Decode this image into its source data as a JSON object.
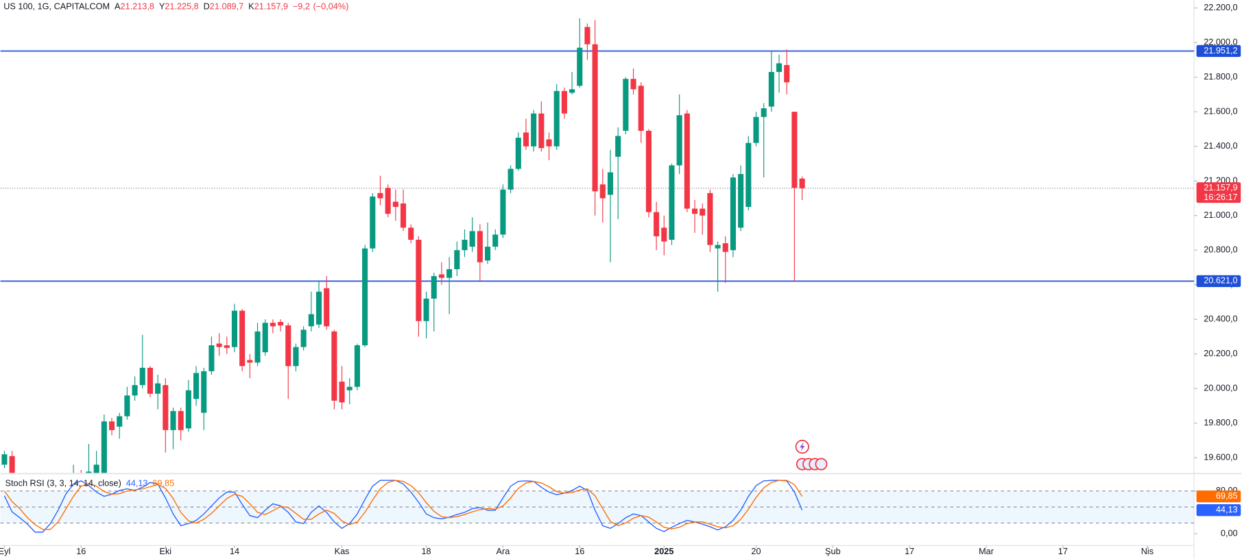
{
  "chart_data": [
    {
      "type": "candlestick",
      "title": "US 100, 1G, CAPITALCOM",
      "legend_keys": [
        "A",
        "Y",
        "D",
        "K"
      ],
      "legend_labels": [
        "21.213,8",
        "21.225,8",
        "21.089,7",
        "21.157,9"
      ],
      "change": {
        "value": -9.2,
        "label": "−9,2"
      },
      "change_pct": {
        "value": -0.04,
        "label": "(−0,04%)"
      },
      "up_color": "#089981",
      "down_color": "#f23645",
      "x": [
        0,
        1,
        9,
        10,
        11,
        12,
        13,
        14,
        15,
        16,
        17,
        18,
        19,
        20,
        21,
        22,
        23,
        24,
        25,
        26,
        27,
        28,
        29,
        30,
        31,
        32,
        33,
        34,
        35,
        36,
        37,
        38,
        39,
        40,
        41,
        42,
        43,
        44,
        45,
        46,
        47,
        48,
        49,
        50,
        51,
        52,
        53,
        54,
        55,
        56,
        57,
        58,
        59,
        60,
        61,
        62,
        63,
        64,
        65,
        66,
        67,
        68,
        69,
        70,
        71,
        72,
        73,
        74,
        75,
        76,
        77,
        78,
        79,
        80,
        81,
        82,
        83,
        84,
        85,
        86,
        87,
        88,
        89,
        90,
        91,
        92,
        93,
        94,
        95,
        96,
        97,
        98,
        99,
        100,
        101,
        102,
        103,
        104
      ],
      "open": [
        19560,
        19610,
        19450,
        19500,
        19460,
        19500,
        19500,
        19810,
        19780,
        19840,
        19960,
        20020,
        20120,
        19970,
        20020,
        19760,
        19870,
        19770,
        19940,
        19860,
        20100,
        20260,
        20250,
        20240,
        20450,
        20165,
        20150,
        20210,
        20380,
        20385,
        20365,
        20130,
        20240,
        20360,
        20370,
        20580,
        20330,
        20040,
        19990,
        20010,
        20250,
        20810,
        21130,
        21160,
        21080,
        21070,
        20930,
        20860,
        20390,
        20520,
        20660,
        20640,
        20690,
        20800,
        20820,
        20910,
        20740,
        20820,
        20890,
        21150,
        21270,
        21480,
        21400,
        21590,
        21440,
        21400,
        21720,
        21710,
        21750,
        22090,
        21990,
        21180,
        21120,
        21340,
        21490,
        21790,
        21750,
        21490,
        21020,
        20930,
        20860,
        21290,
        21590,
        21040,
        21040,
        21130,
        20810,
        20840,
        20800,
        20930,
        21050,
        21420,
        21570,
        21630,
        21830,
        21870,
        21600,
        21213.8
      ],
      "high": [
        19640,
        19640,
        19560,
        19530,
        19680,
        19640,
        19850,
        19830,
        19860,
        20010,
        20070,
        20310,
        20130,
        20080,
        20060,
        19890,
        19890,
        20050,
        20130,
        20120,
        20300,
        20320,
        20300,
        20490,
        20460,
        20200,
        20380,
        20400,
        20400,
        20400,
        20380,
        20260,
        20360,
        20560,
        20620,
        20650,
        20340,
        20130,
        20060,
        20260,
        20830,
        21130,
        21230,
        21180,
        21150,
        21150,
        20950,
        20880,
        20560,
        20670,
        20730,
        20760,
        20850,
        20920,
        20990,
        20950,
        20960,
        20920,
        21180,
        21290,
        21480,
        21560,
        21610,
        21660,
        21480,
        21760,
        21740,
        21830,
        22140,
        22110,
        22130,
        21270,
        21380,
        21510,
        21800,
        21850,
        21770,
        21500,
        21080,
        21000,
        21300,
        21700,
        21610,
        21090,
        21070,
        21150,
        20850,
        20880,
        21240,
        21290,
        21460,
        21600,
        21650,
        21950,
        21930,
        21960,
        21600,
        21225.8
      ],
      "low": [
        19540,
        19460,
        19420,
        19420,
        19440,
        19460,
        19480,
        19730,
        19710,
        19820,
        19930,
        20000,
        19950,
        19880,
        19630,
        19650,
        19700,
        19750,
        19900,
        19760,
        20080,
        20190,
        20200,
        20210,
        20100,
        20060,
        20130,
        20190,
        20320,
        20330,
        19940,
        20100,
        20220,
        20330,
        20350,
        20340,
        19880,
        19880,
        19910,
        19990,
        20240,
        20790,
        21060,
        20990,
        20970,
        20910,
        20840,
        20300,
        20290,
        20330,
        20600,
        20430,
        20650,
        20760,
        20790,
        20620,
        20720,
        20800,
        20870,
        21130,
        21260,
        21380,
        21370,
        21370,
        21320,
        21380,
        21560,
        21700,
        21740,
        21900,
        21000,
        20960,
        20730,
        20980,
        21470,
        21700,
        21420,
        20990,
        20800,
        20770,
        20830,
        21240,
        21020,
        20900,
        20890,
        20790,
        20560,
        20610,
        20760,
        20910,
        21030,
        21400,
        21220,
        21600,
        21710,
        21700,
        20620,
        21089.7
      ],
      "close": [
        19620,
        19480,
        19500,
        19460,
        19520,
        19560,
        19810,
        19760,
        19840,
        19960,
        20020,
        20120,
        19970,
        20030,
        19760,
        19870,
        19760,
        19990,
        20090,
        20100,
        20250,
        20240,
        20235,
        20450,
        20130,
        20150,
        20330,
        20380,
        20360,
        20365,
        20130,
        20240,
        20340,
        20430,
        20560,
        20360,
        19930,
        19920,
        20010,
        20250,
        20810,
        21110,
        21100,
        21010,
        21050,
        20930,
        20860,
        20390,
        20520,
        20650,
        20640,
        20690,
        20800,
        20860,
        20910,
        20730,
        20820,
        20890,
        21150,
        21270,
        21450,
        21400,
        21590,
        21390,
        21400,
        21720,
        21590,
        21730,
        21970,
        21990,
        21140,
        21100,
        21250,
        21460,
        21790,
        21730,
        21490,
        21020,
        20880,
        20850,
        21290,
        21580,
        21040,
        21010,
        21000,
        20830,
        20830,
        20790,
        21220,
        21240,
        21420,
        21570,
        21620,
        21830,
        21880,
        21770,
        21160,
        21157.9
      ],
      "xlim": [
        -0.52,
        155.1
      ],
      "ylim": [
        19513,
        22246
      ],
      "yticks": [
        {
          "value": 19600,
          "label": "19.600,0"
        },
        {
          "value": 19800,
          "label": "19.800,0"
        },
        {
          "value": 20000,
          "label": "20.000,0"
        },
        {
          "value": 20200,
          "label": "20.200,0"
        },
        {
          "value": 20400,
          "label": "20.400,0"
        },
        {
          "value": 20600,
          "label": "20.600,0"
        },
        {
          "value": 20800,
          "label": "20.800,0"
        },
        {
          "value": 21000,
          "label": "21.000,0"
        },
        {
          "value": 21200,
          "label": "21.200,0"
        },
        {
          "value": 21400,
          "label": "21.400,0"
        },
        {
          "value": 21600,
          "label": "21.600,0"
        },
        {
          "value": 21800,
          "label": "21.800,0"
        },
        {
          "value": 22000,
          "label": "22.000,0"
        },
        {
          "value": 22200,
          "label": "22.200,0"
        }
      ],
      "xticks": [
        {
          "value": 0,
          "label": "Eyl"
        },
        {
          "value": 10,
          "label": "16"
        },
        {
          "value": 21,
          "label": "Eki"
        },
        {
          "value": 30,
          "label": "14"
        },
        {
          "value": 44,
          "label": "Kas"
        },
        {
          "value": 55,
          "label": "18"
        },
        {
          "value": 65,
          "label": "Ara"
        },
        {
          "value": 75,
          "label": "16"
        },
        {
          "value": 86,
          "label": "2025"
        },
        {
          "value": 98,
          "label": "20"
        },
        {
          "value": 108,
          "label": "Şub"
        },
        {
          "value": 118,
          "label": "17"
        },
        {
          "value": 128,
          "label": "Mar"
        },
        {
          "value": 138,
          "label": "17"
        },
        {
          "value": 149,
          "label": "Nis"
        }
      ],
      "hline_color": "#1e4fd8",
      "hlines": [
        {
          "value": 21951.2,
          "label": "21.951,2"
        },
        {
          "value": 20621.0,
          "label": "20.621,0"
        }
      ],
      "last_price": {
        "value": 21157.9,
        "label": "21.157,9"
      },
      "countdown": "16:26:17"
    },
    {
      "type": "line",
      "title": "Stoch RSI (3, 3, 14, 14, close)",
      "x": [
        0,
        1,
        2,
        3,
        4,
        5,
        6,
        7,
        8,
        9,
        10,
        11,
        12,
        13,
        14,
        15,
        16,
        17,
        18,
        19,
        20,
        21,
        22,
        23,
        24,
        25,
        26,
        27,
        28,
        29,
        30,
        31,
        32,
        33,
        34,
        35,
        36,
        37,
        38,
        39,
        40,
        41,
        42,
        43,
        44,
        45,
        46,
        47,
        48,
        49,
        50,
        51,
        52,
        53,
        54,
        55,
        56,
        57,
        58,
        59,
        60,
        61,
        62,
        63,
        64,
        65,
        66,
        67,
        68,
        69,
        70,
        71,
        72,
        73,
        74,
        75,
        76,
        77,
        78,
        79,
        80,
        81,
        82,
        83,
        84,
        85,
        86,
        87,
        88,
        89,
        90,
        91,
        92,
        93,
        94,
        95,
        96,
        97,
        98,
        99,
        100,
        101,
        102,
        103,
        104
      ],
      "series": [
        {
          "color": "#2962ff",
          "last_label": "44,13",
          "values": [
            71,
            41,
            30,
            18,
            3,
            3,
            19,
            44,
            74,
            93,
            99,
            90,
            78,
            70,
            74,
            81,
            84,
            81,
            87,
            96,
            93,
            67,
            37,
            15,
            19,
            25,
            37,
            52,
            67,
            78,
            78,
            55,
            34,
            30,
            44,
            56,
            52,
            40,
            22,
            19,
            40,
            52,
            40,
            22,
            10,
            19,
            37,
            64,
            89,
            100,
            100,
            100,
            93,
            78,
            59,
            37,
            30,
            28,
            31,
            36,
            40,
            47,
            49,
            44,
            44,
            67,
            89,
            98,
            99,
            98,
            87,
            78,
            73,
            76,
            81,
            89,
            81,
            44,
            15,
            10,
            19,
            30,
            37,
            34,
            22,
            10,
            4,
            12,
            19,
            25,
            22,
            18,
            13,
            7,
            13,
            25,
            44,
            70,
            90,
            99,
            100,
            100,
            99,
            78,
            44.13
          ]
        },
        {
          "color": "#ff6d00",
          "last_label": "69,85",
          "values": [
            80,
            60,
            47,
            30,
            17,
            8,
            8,
            22,
            46,
            70,
            89,
            94,
            89,
            79,
            74,
            75,
            80,
            82,
            84,
            88,
            92,
            85,
            66,
            40,
            24,
            20,
            27,
            38,
            52,
            66,
            74,
            70,
            56,
            40,
            36,
            43,
            51,
            49,
            38,
            27,
            27,
            37,
            44,
            38,
            24,
            17,
            22,
            40,
            63,
            84,
            96,
            100,
            98,
            90,
            77,
            58,
            42,
            32,
            30,
            32,
            36,
            41,
            45,
            47,
            46,
            52,
            67,
            85,
            95,
            98,
            95,
            88,
            79,
            76,
            77,
            82,
            84,
            71,
            47,
            23,
            15,
            20,
            29,
            34,
            31,
            22,
            12,
            9,
            12,
            19,
            22,
            22,
            18,
            13,
            11,
            15,
            27,
            46,
            68,
            86,
            96,
            100,
            100,
            92,
            69.85
          ]
        }
      ],
      "ylim": [
        -22.2,
        111.1
      ],
      "yticks": [
        {
          "value": 80,
          "label": "80,00"
        },
        {
          "value": 0,
          "label": "0,00"
        }
      ],
      "bands": {
        "upper": 80,
        "middle": 50,
        "lower": 20
      }
    }
  ]
}
